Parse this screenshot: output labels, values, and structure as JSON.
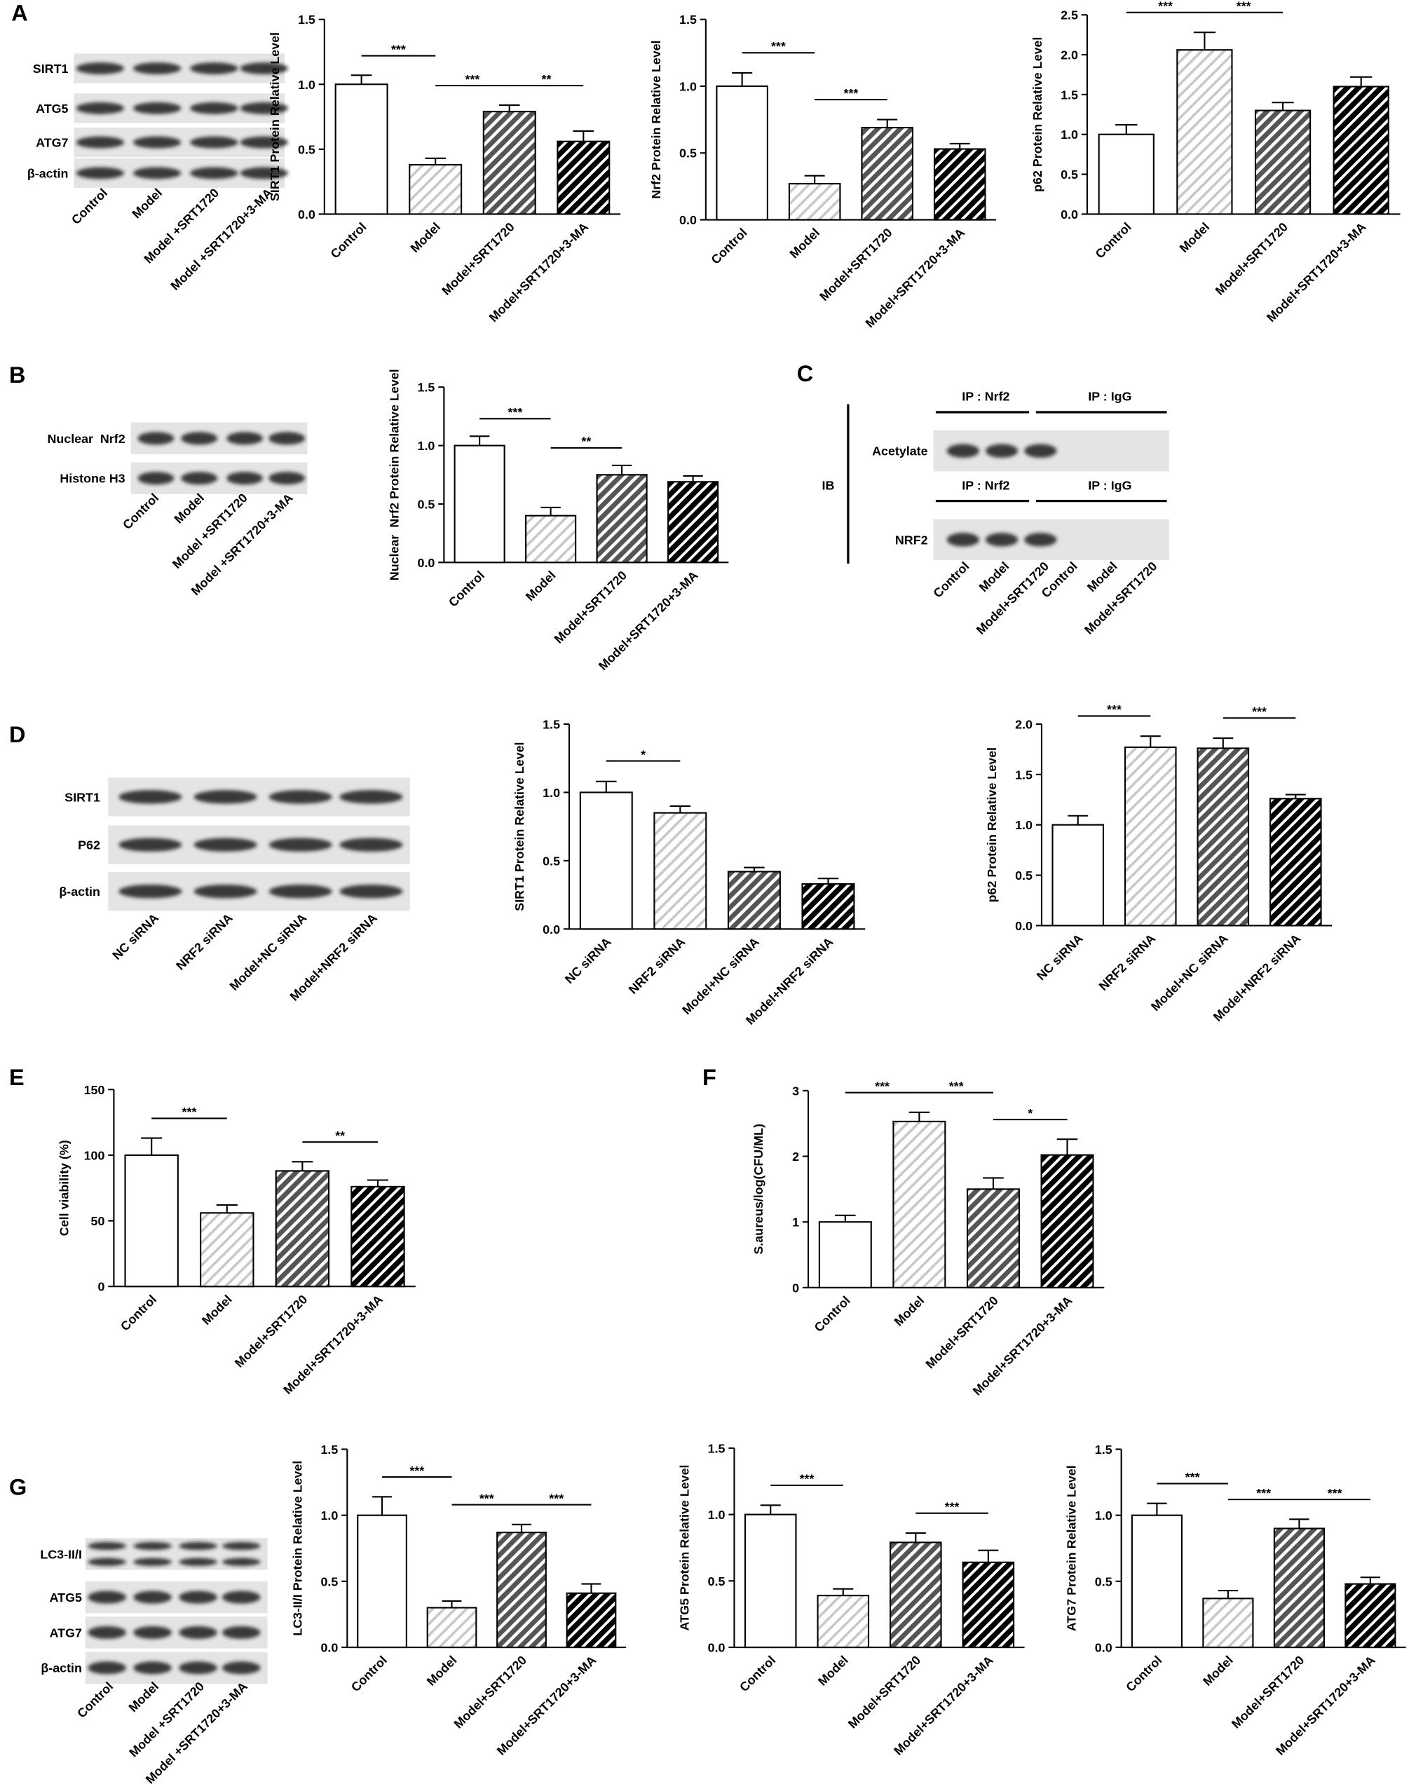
{
  "panel_labels": [
    "A",
    "B",
    "C",
    "D",
    "E",
    "F",
    "G"
  ],
  "blots": [
    {
      "rows": [
        "SIRT1",
        "ATG5",
        "ATG7",
        "β-actin"
      ],
      "lanes": [
        "Control",
        "Model",
        "Model +SRT1720",
        "Model +SRT1720+3-MA"
      ]
    },
    {
      "rows": [
        "Nuclear  Nrf2",
        "Histone H3"
      ],
      "lanes": [
        "Control",
        "Model",
        "Model +SRT1720",
        "Model +SRT1720+3-MA"
      ]
    },
    {
      "headers": [
        "IP : Nrf2",
        "IP : IgG"
      ],
      "side_label": "IB",
      "rows": [
        "Acetylate",
        "NRF2"
      ],
      "lanes": [
        "Control",
        "Model",
        "Model+SRT1720",
        "Control",
        "Model",
        "Model+SRT1720"
      ]
    },
    {
      "rows": [
        "SIRT1",
        "P62",
        "β-actin"
      ],
      "lanes": [
        "NC siRNA",
        "NRF2 siRNA",
        "Model+NC siRNA",
        "Model+NRF2 siRNA"
      ]
    },
    {
      "rows": [
        "LC3-II/I",
        "ATG5",
        "ATG7",
        "β-actin"
      ],
      "lanes": [
        "Control",
        "Model",
        "Model +SRT1720",
        "Model +SRT1720+3-MA"
      ]
    }
  ],
  "chart_data": [
    {
      "type": "bar",
      "y_label": "SIRT1 Protein Relative Level",
      "categories": [
        "Control",
        "Model",
        "Model+SRT1720",
        "Model+SRT1720+3-MA"
      ],
      "values": [
        1.0,
        0.38,
        0.79,
        0.56
      ],
      "errors": [
        0.07,
        0.05,
        0.05,
        0.08
      ],
      "ylim": [
        0,
        1.5
      ],
      "yticks": [
        {
          "value": 0,
          "label": "0.0"
        },
        {
          "value": 0.5,
          "label": "0.5"
        },
        {
          "value": 1,
          "label": "1.0"
        },
        {
          "value": 1.5,
          "label": "1.5"
        }
      ],
      "significance": [
        {
          "groups": [
            "Control",
            "Model"
          ],
          "label": "***"
        },
        {
          "groups": [
            "Model",
            "Model+SRT1720"
          ],
          "label": "***"
        },
        {
          "groups": [
            "Model+SRT1720",
            "Model+SRT1720+3-MA"
          ],
          "label": "**"
        }
      ]
    },
    {
      "type": "bar",
      "y_label": "Nrf2 Protein Relative Level",
      "categories": [
        "Control",
        "Model",
        "Model+SRT1720",
        "Model+SRT1720+3-MA"
      ],
      "values": [
        1.0,
        0.27,
        0.69,
        0.53
      ],
      "errors": [
        0.1,
        0.06,
        0.06,
        0.04
      ],
      "ylim": [
        0,
        1.5
      ],
      "yticks": [
        {
          "value": 0,
          "label": "0.0"
        },
        {
          "value": 0.5,
          "label": "0.5"
        },
        {
          "value": 1,
          "label": "1.0"
        },
        {
          "value": 1.5,
          "label": "1.5"
        }
      ],
      "significance": [
        {
          "groups": [
            "Control",
            "Model"
          ],
          "label": "***"
        },
        {
          "groups": [
            "Model",
            "Model+SRT1720"
          ],
          "label": "***"
        }
      ]
    },
    {
      "type": "bar",
      "y_label": "p62 Protein Relative Level",
      "categories": [
        "Control",
        "Model",
        "Model+SRT1720",
        "Model+SRT1720+3-MA"
      ],
      "values": [
        1.0,
        2.06,
        1.3,
        1.6
      ],
      "errors": [
        0.12,
        0.22,
        0.1,
        0.12
      ],
      "ylim": [
        0,
        2.5
      ],
      "yticks": [
        {
          "value": 0,
          "label": "0.0"
        },
        {
          "value": 0.5,
          "label": "0.5"
        },
        {
          "value": 1,
          "label": "1.0"
        },
        {
          "value": 1.5,
          "label": "1.5"
        },
        {
          "value": 2,
          "label": "2.0"
        },
        {
          "value": 2.5,
          "label": "2.5"
        }
      ],
      "significance": [
        {
          "groups": [
            "Control",
            "Model"
          ],
          "label": "***"
        },
        {
          "groups": [
            "Model",
            "Model+SRT1720"
          ],
          "label": "***"
        }
      ]
    },
    {
      "type": "bar",
      "y_label": "Nuclear  Nrf2 Protein Relative Level",
      "categories": [
        "Control",
        "Model",
        "Model+SRT1720",
        "Model+SRT1720+3-MA"
      ],
      "values": [
        1.0,
        0.4,
        0.75,
        0.69
      ],
      "errors": [
        0.08,
        0.07,
        0.08,
        0.05
      ],
      "ylim": [
        0,
        1.5
      ],
      "yticks": [
        {
          "value": 0,
          "label": "0.0"
        },
        {
          "value": 0.5,
          "label": "0.5"
        },
        {
          "value": 1,
          "label": "1.0"
        },
        {
          "value": 1.5,
          "label": "1.5"
        }
      ],
      "significance": [
        {
          "groups": [
            "Control",
            "Model"
          ],
          "label": "***"
        },
        {
          "groups": [
            "Model",
            "Model+SRT1720"
          ],
          "label": "**"
        }
      ]
    },
    {
      "type": "bar",
      "y_label": "SIRT1 Protein Relative Level",
      "categories": [
        "NC siRNA",
        "NRF2 siRNA",
        "Model+NC siRNA",
        "Model+NRF2 siRNA"
      ],
      "values": [
        1.0,
        0.85,
        0.42,
        0.33
      ],
      "errors": [
        0.08,
        0.05,
        0.03,
        0.04
      ],
      "ylim": [
        0,
        1.5
      ],
      "yticks": [
        {
          "value": 0,
          "label": "0.0"
        },
        {
          "value": 0.5,
          "label": "0.5"
        },
        {
          "value": 1,
          "label": "1.0"
        },
        {
          "value": 1.5,
          "label": "1.5"
        }
      ],
      "significance": [
        {
          "groups": [
            "NC siRNA",
            "NRF2 siRNA"
          ],
          "label": "*"
        }
      ]
    },
    {
      "type": "bar",
      "y_label": "p62 Protein Relative Level",
      "categories": [
        "NC siRNA",
        "NRF2 siRNA",
        "Model+NC siRNA",
        "Model+NRF2 siRNA"
      ],
      "values": [
        1.0,
        1.77,
        1.76,
        1.26
      ],
      "errors": [
        0.09,
        0.11,
        0.1,
        0.04
      ],
      "ylim": [
        0,
        2
      ],
      "yticks": [
        {
          "value": 0,
          "label": "0.0"
        },
        {
          "value": 0.5,
          "label": "0.5"
        },
        {
          "value": 1,
          "label": "1.0"
        },
        {
          "value": 1.5,
          "label": "1.5"
        },
        {
          "value": 2,
          "label": "2.0"
        }
      ],
      "significance": [
        {
          "groups": [
            "NC siRNA",
            "NRF2 siRNA"
          ],
          "label": "***"
        },
        {
          "groups": [
            "Model+NC siRNA",
            "Model+NRF2 siRNA"
          ],
          "label": "***"
        }
      ]
    },
    {
      "type": "bar",
      "y_label": "Cell viability (%)",
      "categories": [
        "Control",
        "Model",
        "Model+SRT1720",
        "Model+SRT1720+3-MA"
      ],
      "values": [
        100,
        56,
        88,
        76
      ],
      "errors": [
        13,
        6,
        7,
        5
      ],
      "ylim": [
        0,
        150
      ],
      "yticks": [
        0,
        50,
        100,
        150
      ],
      "significance": [
        {
          "groups": [
            "Control",
            "Model"
          ],
          "label": "***"
        },
        {
          "groups": [
            "Model+SRT1720",
            "Model+SRT1720+3-MA"
          ],
          "label": "**"
        }
      ]
    },
    {
      "type": "bar",
      "y_label": "S.aureus/log(CFU/ML)",
      "categories": [
        "Control",
        "Model",
        "Model+SRT1720",
        "Model+SRT1720+3-MA"
      ],
      "values": [
        1.0,
        2.53,
        1.5,
        2.02
      ],
      "errors": [
        0.1,
        0.14,
        0.17,
        0.24
      ],
      "ylim": [
        0,
        3
      ],
      "yticks": [
        0,
        1,
        2,
        3
      ],
      "significance": [
        {
          "groups": [
            "Control",
            "Model"
          ],
          "label": "***"
        },
        {
          "groups": [
            "Model",
            "Model+SRT1720"
          ],
          "label": "***"
        },
        {
          "groups": [
            "Model+SRT1720",
            "Model+SRT1720+3-MA"
          ],
          "label": "*"
        }
      ]
    },
    {
      "type": "bar",
      "y_label": "LC3-II/I Protein Relative Level",
      "categories": [
        "Control",
        "Model",
        "Model+SRT1720",
        "Model+SRT1720+3-MA"
      ],
      "values": [
        1.0,
        0.3,
        0.87,
        0.41
      ],
      "errors": [
        0.14,
        0.05,
        0.06,
        0.07
      ],
      "ylim": [
        0,
        1.5
      ],
      "yticks": [
        {
          "value": 0,
          "label": "0.0"
        },
        {
          "value": 0.5,
          "label": "0.5"
        },
        {
          "value": 1,
          "label": "1.0"
        },
        {
          "value": 1.5,
          "label": "1.5"
        }
      ],
      "significance": [
        {
          "groups": [
            "Control",
            "Model"
          ],
          "label": "***"
        },
        {
          "groups": [
            "Model",
            "Model+SRT1720"
          ],
          "label": "***"
        },
        {
          "groups": [
            "Model+SRT1720",
            "Model+SRT1720+3-MA"
          ],
          "label": "***"
        }
      ]
    },
    {
      "type": "bar",
      "y_label": "ATG5 Protein Relative Level",
      "categories": [
        "Control",
        "Model",
        "Model+SRT1720",
        "Model+SRT1720+3-MA"
      ],
      "values": [
        1.0,
        0.39,
        0.79,
        0.64
      ],
      "errors": [
        0.07,
        0.05,
        0.07,
        0.09
      ],
      "ylim": [
        0,
        1.5
      ],
      "yticks": [
        {
          "value": 0,
          "label": "0.0"
        },
        {
          "value": 0.5,
          "label": "0.5"
        },
        {
          "value": 1,
          "label": "1.0"
        },
        {
          "value": 1.5,
          "label": "1.5"
        }
      ],
      "significance": [
        {
          "groups": [
            "Control",
            "Model"
          ],
          "label": "***"
        },
        {
          "groups": [
            "Model+SRT1720",
            "Model+SRT1720+3-MA"
          ],
          "label": "***"
        }
      ]
    },
    {
      "type": "bar",
      "y_label": "ATG7 Protein Relative Level",
      "categories": [
        "Control",
        "Model",
        "Model+SRT1720",
        "Model+SRT1720+3-MA"
      ],
      "values": [
        1.0,
        0.37,
        0.9,
        0.48
      ],
      "errors": [
        0.09,
        0.06,
        0.07,
        0.05
      ],
      "ylim": [
        0,
        1.5
      ],
      "yticks": [
        {
          "value": 0,
          "label": "0.0"
        },
        {
          "value": 0.5,
          "label": "0.5"
        },
        {
          "value": 1,
          "label": "1.0"
        },
        {
          "value": 1.5,
          "label": "1.5"
        }
      ],
      "significance": [
        {
          "groups": [
            "Control",
            "Model"
          ],
          "label": "***"
        },
        {
          "groups": [
            "Model",
            "Model+SRT1720"
          ],
          "label": "***"
        },
        {
          "groups": [
            "Model+SRT1720",
            "Model+SRT1720+3-MA"
          ],
          "label": "***"
        }
      ]
    }
  ]
}
